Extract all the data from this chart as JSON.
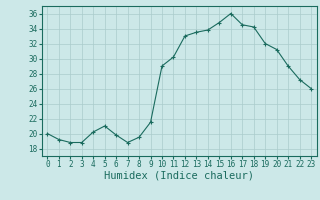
{
  "x": [
    0,
    1,
    2,
    3,
    4,
    5,
    6,
    7,
    8,
    9,
    10,
    11,
    12,
    13,
    14,
    15,
    16,
    17,
    18,
    19,
    20,
    21,
    22,
    23
  ],
  "y": [
    20.0,
    19.2,
    18.8,
    18.8,
    20.2,
    21.0,
    19.8,
    18.8,
    19.5,
    21.5,
    29.0,
    30.2,
    33.0,
    33.5,
    33.8,
    34.8,
    36.0,
    34.5,
    34.2,
    32.0,
    31.2,
    29.0,
    27.2,
    26.0
  ],
  "xlabel": "Humidex (Indice chaleur)",
  "xlim": [
    -0.5,
    23.5
  ],
  "ylim": [
    17,
    37
  ],
  "yticks": [
    18,
    20,
    22,
    24,
    26,
    28,
    30,
    32,
    34,
    36
  ],
  "xticks": [
    0,
    1,
    2,
    3,
    4,
    5,
    6,
    7,
    8,
    9,
    10,
    11,
    12,
    13,
    14,
    15,
    16,
    17,
    18,
    19,
    20,
    21,
    22,
    23
  ],
  "line_color": "#1a6b5e",
  "marker_color": "#1a6b5e",
  "bg_color": "#cce8e8",
  "grid_color": "#aacccc",
  "tick_fontsize": 5.5,
  "xlabel_fontsize": 7.5
}
